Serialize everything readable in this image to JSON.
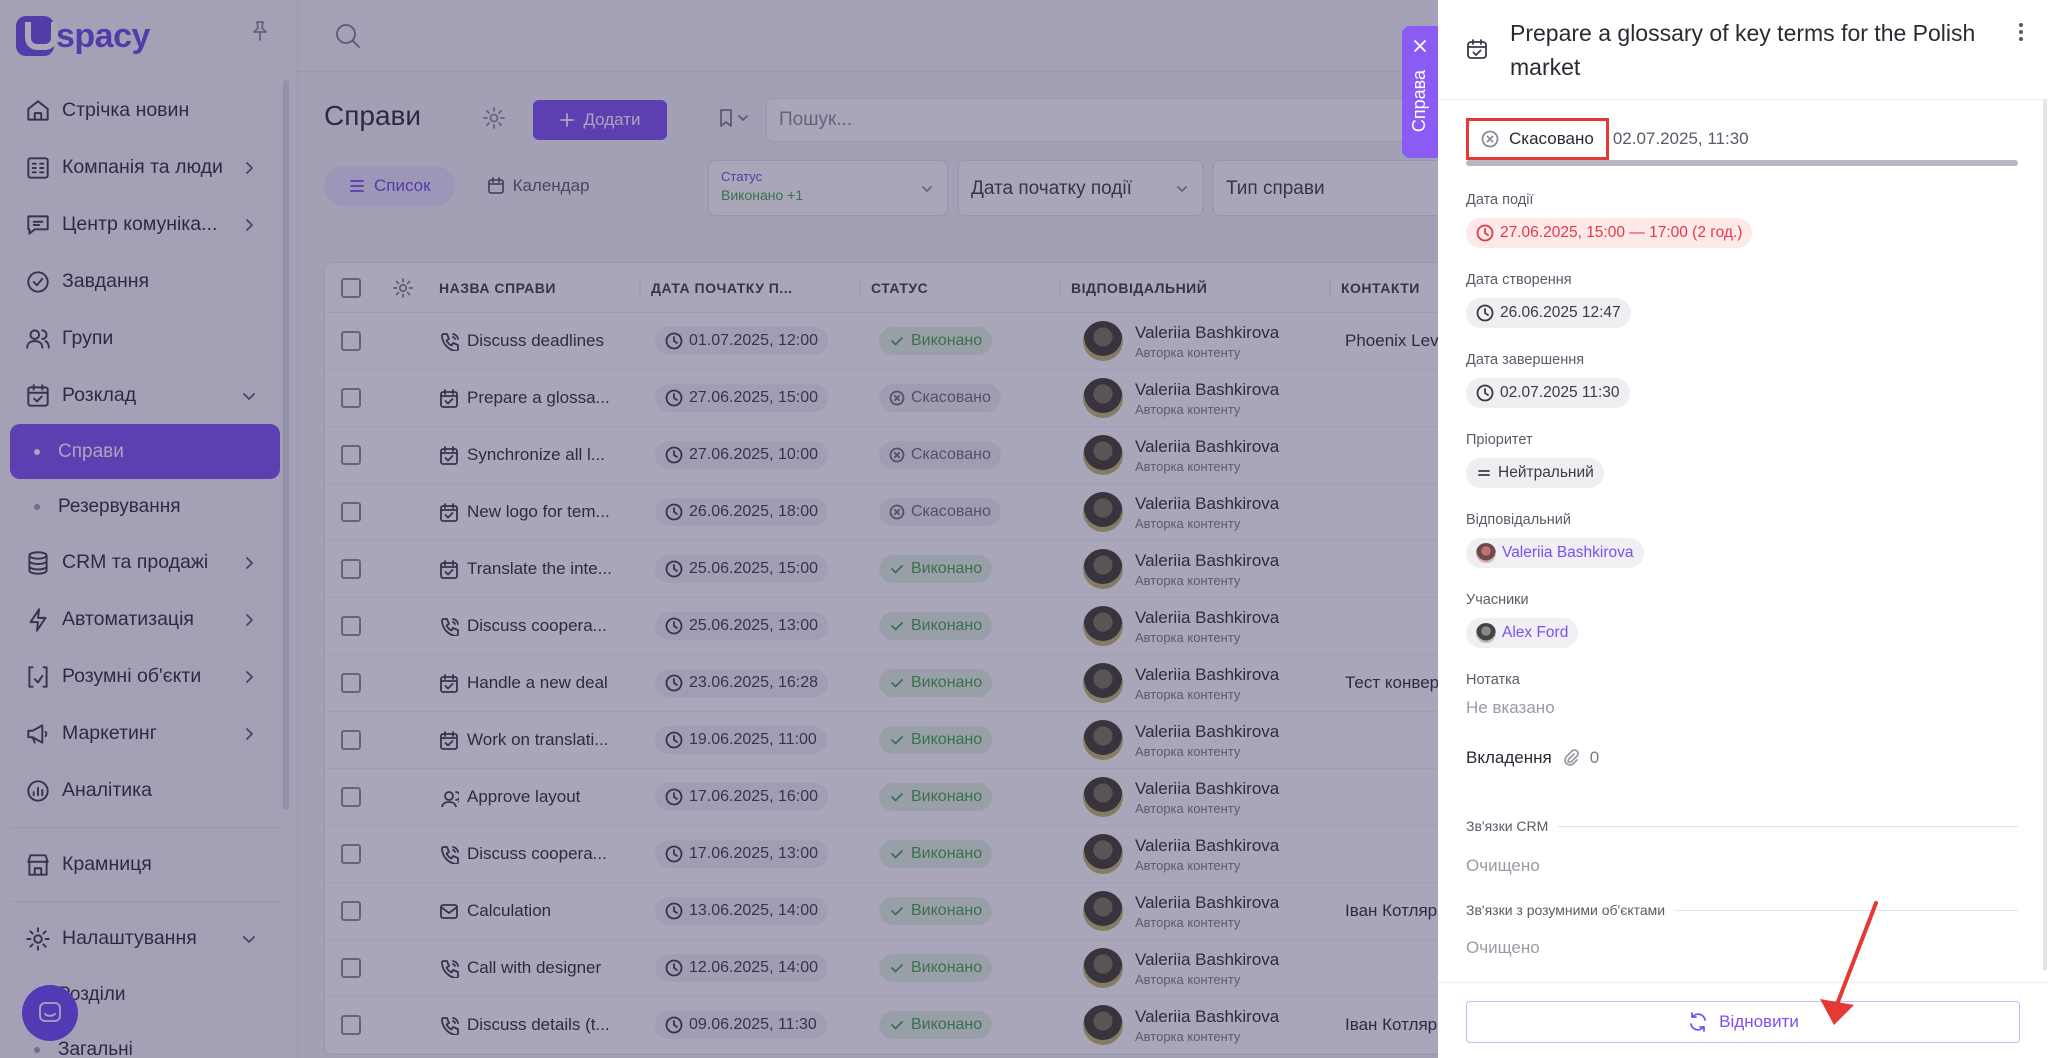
{
  "app": {
    "logo_letter": "U",
    "logo_text": "spacy"
  },
  "sidebar": {
    "items": [
      {
        "label": "Стрічка новин",
        "icon": "home-icon",
        "chevron": false
      },
      {
        "label": "Компанія та люди",
        "icon": "building-icon",
        "chevron": true
      },
      {
        "label": "Центр комуніка...",
        "icon": "chat-icon",
        "chevron": true
      },
      {
        "label": "Завдання",
        "icon": "check-circle-icon",
        "chevron": false
      },
      {
        "label": "Групи",
        "icon": "users-icon",
        "chevron": false
      },
      {
        "label": "Розклад",
        "icon": "calendar-icon",
        "chevron": true,
        "expanded": true
      }
    ],
    "sub_schedule": [
      {
        "label": "Справи",
        "active": true
      },
      {
        "label": "Резервування",
        "active": false
      }
    ],
    "items2": [
      {
        "label": "CRM та продажі",
        "icon": "database-icon",
        "chevron": true
      },
      {
        "label": "Автоматизація",
        "icon": "bolt-icon",
        "chevron": true
      },
      {
        "label": "Розумні об'єкти",
        "icon": "brackets-icon",
        "chevron": true
      },
      {
        "label": "Маркетинг",
        "icon": "megaphone-icon",
        "chevron": true
      },
      {
        "label": "Аналітика",
        "icon": "chart-icon",
        "chevron": false
      }
    ],
    "store": {
      "label": "Крамниця",
      "icon": "store-icon"
    },
    "settings": {
      "label": "Налаштування",
      "icon": "gear-icon"
    },
    "sub_settings": [
      {
        "label": "Розділи"
      },
      {
        "label": "Загальні"
      }
    ]
  },
  "main": {
    "title": "Справи",
    "add_label": "Додати",
    "search_placeholder": "Пошук...",
    "tabs": [
      {
        "label": "Список",
        "active": true
      },
      {
        "label": "Календар",
        "active": false
      }
    ],
    "filters": {
      "status_label": "Статус",
      "status_value": "Виконано +1",
      "start_date": "Дата початку події",
      "type": "Тип справи"
    },
    "columns": [
      "НАЗВА СПРАВИ",
      "ДАТА ПОЧАТКУ П...",
      "СТАТУС",
      "ВІДПОВІДАЛЬНИЙ",
      "КОНТАКТИ"
    ],
    "rows": [
      {
        "icon": "phone-icon",
        "name": "Discuss deadlines",
        "date": "01.07.2025, 12:00",
        "status": "Виконано",
        "state": "done",
        "resp": "Valeriia Bashkirova",
        "role": "Авторка контенту",
        "contact": "Phoenix Lev"
      },
      {
        "icon": "calendar-check-icon",
        "name": "Prepare a glossa...",
        "date": "27.06.2025, 15:00",
        "status": "Скасовано",
        "state": "cancel",
        "resp": "Valeriia Bashkirova",
        "role": "Авторка контенту",
        "contact": ""
      },
      {
        "icon": "calendar-check-icon",
        "name": "Synchronize all l...",
        "date": "27.06.2025, 10:00",
        "status": "Скасовано",
        "state": "cancel",
        "resp": "Valeriia Bashkirova",
        "role": "Авторка контенту",
        "contact": ""
      },
      {
        "icon": "calendar-check-icon",
        "name": "New logo for tem...",
        "date": "26.06.2025, 18:00",
        "status": "Скасовано",
        "state": "cancel",
        "resp": "Valeriia Bashkirova",
        "role": "Авторка контенту",
        "contact": ""
      },
      {
        "icon": "calendar-check-icon",
        "name": "Translate the inte...",
        "date": "25.06.2025, 15:00",
        "status": "Виконано",
        "state": "done",
        "resp": "Valeriia Bashkirova",
        "role": "Авторка контенту",
        "contact": ""
      },
      {
        "icon": "phone-icon",
        "name": "Discuss coopera...",
        "date": "25.06.2025, 13:00",
        "status": "Виконано",
        "state": "done",
        "resp": "Valeriia Bashkirova",
        "role": "Авторка контенту",
        "contact": ""
      },
      {
        "icon": "calendar-check-icon",
        "name": "Handle a new deal",
        "date": "23.06.2025, 16:28",
        "status": "Виконано",
        "state": "done",
        "resp": "Valeriia Bashkirova",
        "role": "Авторка контенту",
        "contact": "Тест конвер"
      },
      {
        "icon": "calendar-check-icon",
        "name": "Work on translati...",
        "date": "19.06.2025, 11:00",
        "status": "Виконано",
        "state": "done",
        "resp": "Valeriia Bashkirova",
        "role": "Авторка контенту",
        "contact": ""
      },
      {
        "icon": "users-icon",
        "name": "Approve layout",
        "date": "17.06.2025, 16:00",
        "status": "Виконано",
        "state": "done",
        "resp": "Valeriia Bashkirova",
        "role": "Авторка контенту",
        "contact": ""
      },
      {
        "icon": "phone-icon",
        "name": "Discuss coopera...",
        "date": "17.06.2025, 13:00",
        "status": "Виконано",
        "state": "done",
        "resp": "Valeriia Bashkirova",
        "role": "Авторка контенту",
        "contact": ""
      },
      {
        "icon": "mail-icon",
        "name": "Calculation",
        "date": "13.06.2025, 14:00",
        "status": "Виконано",
        "state": "done",
        "resp": "Valeriia Bashkirova",
        "role": "Авторка контенту",
        "contact": "Іван Котляр"
      },
      {
        "icon": "phone-icon",
        "name": "Call with designer",
        "date": "12.06.2025, 14:00",
        "status": "Виконано",
        "state": "done",
        "resp": "Valeriia Bashkirova",
        "role": "Авторка контенту",
        "contact": ""
      },
      {
        "icon": "phone-icon",
        "name": "Discuss details (t...",
        "date": "09.06.2025, 11:30",
        "status": "Виконано",
        "state": "done",
        "resp": "Valeriia Bashkirova",
        "role": "Авторка контенту",
        "contact": "Іван Котляр"
      }
    ]
  },
  "side_tab": {
    "label": "Справа"
  },
  "panel": {
    "title": "Prepare a glossary of key terms for the Polish market",
    "status": "Скасовано",
    "status_date": "02.07.2025, 11:30",
    "progress": 1.0,
    "event_date_label": "Дата події",
    "event_date": "27.06.2025, 15:00 — 17:00 (2 год.)",
    "created_label": "Дата створення",
    "created": "26.06.2025 12:47",
    "completed_label": "Дата завершення",
    "completed": "02.07.2025 11:30",
    "priority_label": "Пріоритет",
    "priority": "Нейтральний",
    "responsible_label": "Відповідальний",
    "responsible": "Valeriia Bashkirova",
    "participants_label": "Учасники",
    "participant": "Alex Ford",
    "note_label": "Нотатка",
    "note": "Не вказано",
    "attachments_label": "Вкладення",
    "attachments_count": "0",
    "crm_label": "Зв'язки CRM",
    "crm_value": "Очищено",
    "smart_label": "Зв'язки з розумними об'єктами",
    "smart_value": "Очищено",
    "restore_label": "Відновити"
  },
  "colors": {
    "accent": "#7b4ff0",
    "danger": "#e53935",
    "success": "#3fa43f"
  }
}
